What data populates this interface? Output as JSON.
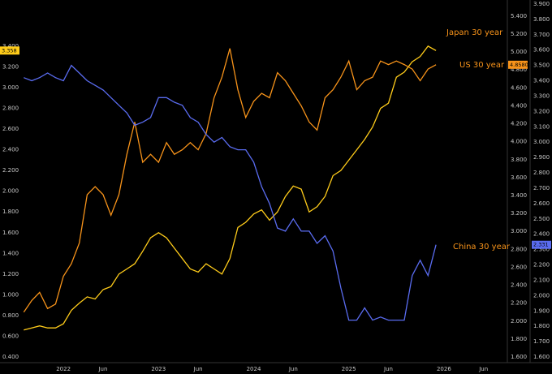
{
  "chart_data": {
    "type": "line",
    "x": [
      "2021-08",
      "2021-09",
      "2021-10",
      "2021-11",
      "2021-12",
      "2022-01",
      "2022-02",
      "2022-03",
      "2022-04",
      "2022-05",
      "2022-06",
      "2022-07",
      "2022-08",
      "2022-09",
      "2022-10",
      "2022-11",
      "2022-12",
      "2023-01",
      "2023-02",
      "2023-03",
      "2023-04",
      "2023-05",
      "2023-06",
      "2023-07",
      "2023-08",
      "2023-09",
      "2023-10",
      "2023-11",
      "2023-12",
      "2024-01",
      "2024-02",
      "2024-03",
      "2024-04",
      "2024-05",
      "2024-06",
      "2024-07",
      "2024-08",
      "2024-09",
      "2024-10",
      "2024-11",
      "2024-12",
      "2025-01",
      "2025-02",
      "2025-03",
      "2025-04",
      "2025-05",
      "2025-06",
      "2025-07",
      "2025-08",
      "2025-09",
      "2025-10",
      "2025-11",
      "2025-12"
    ],
    "xlim": [
      "2021-05",
      "2026-09"
    ],
    "xticks": [
      {
        "value": "2022-01",
        "label": "2022"
      },
      {
        "value": "2022-06",
        "label": "Jun"
      },
      {
        "value": "2023-01",
        "label": "2023"
      },
      {
        "value": "2023-06",
        "label": "Jun"
      },
      {
        "value": "2024-01",
        "label": "2024"
      },
      {
        "value": "2024-06",
        "label": "Jun"
      },
      {
        "value": "2025-01",
        "label": "2025"
      },
      {
        "value": "2025-06",
        "label": "Jun"
      },
      {
        "value": "2026-01",
        "label": "2026"
      },
      {
        "value": "2026-06",
        "label": "Jun"
      }
    ],
    "ylim": [
      0.345,
      3.846
    ],
    "yticks": [
      {
        "value": 0.4,
        "label": "0.400"
      },
      {
        "value": 0.6,
        "label": "0.600"
      },
      {
        "value": 0.8,
        "label": "0.800"
      },
      {
        "value": 1.0,
        "label": "1.000"
      },
      {
        "value": 1.2,
        "label": "1.200"
      },
      {
        "value": 1.4,
        "label": "1.400"
      },
      {
        "value": 1.6,
        "label": "1.600"
      },
      {
        "value": 1.8,
        "label": "1.800"
      },
      {
        "value": 2.0,
        "label": "2.000"
      },
      {
        "value": 2.2,
        "label": "2.200"
      },
      {
        "value": 2.4,
        "label": "2.400"
      },
      {
        "value": 2.6,
        "label": "2.600"
      },
      {
        "value": 2.8,
        "label": "2.800"
      },
      {
        "value": 3.0,
        "label": "3.000"
      },
      {
        "value": 3.2,
        "label": "3.200"
      },
      {
        "value": 3.4,
        "label": "3.400"
      }
    ],
    "y2lim": [
      1.537,
      5.58
    ],
    "y2ticks": [
      {
        "value": 1.6,
        "label": "1.600"
      },
      {
        "value": 1.8,
        "label": "1.800"
      },
      {
        "value": 2.0,
        "label": "2.000"
      },
      {
        "value": 2.2,
        "label": "2.200"
      },
      {
        "value": 2.4,
        "label": "2.400"
      },
      {
        "value": 2.6,
        "label": "2.600"
      },
      {
        "value": 2.8,
        "label": "2.800"
      },
      {
        "value": 3.0,
        "label": "3.000"
      },
      {
        "value": 3.2,
        "label": "3.200"
      },
      {
        "value": 3.4,
        "label": "3.400"
      },
      {
        "value": 3.6,
        "label": "3.600"
      },
      {
        "value": 3.8,
        "label": "3.800"
      },
      {
        "value": 4.0,
        "label": "4.000"
      },
      {
        "value": 4.2,
        "label": "4.200"
      },
      {
        "value": 4.4,
        "label": "4.400"
      },
      {
        "value": 4.6,
        "label": "4.600"
      },
      {
        "value": 4.8,
        "label": "4.800"
      },
      {
        "value": 5.0,
        "label": "5.000"
      },
      {
        "value": 5.2,
        "label": "5.200"
      },
      {
        "value": 5.4,
        "label": "5.400"
      }
    ],
    "y3lim": [
      1.563,
      3.926
    ],
    "y3ticks": [
      {
        "value": 1.6,
        "label": "1.600"
      },
      {
        "value": 1.7,
        "label": "1.700"
      },
      {
        "value": 1.8,
        "label": "1.800"
      },
      {
        "value": 1.9,
        "label": "1.900"
      },
      {
        "value": 2.0,
        "label": "2.000"
      },
      {
        "value": 2.1,
        "label": "2.100"
      },
      {
        "value": 2.2,
        "label": "2.200"
      },
      {
        "value": 2.3,
        "label": "2.300"
      },
      {
        "value": 2.4,
        "label": "2.400"
      },
      {
        "value": 2.5,
        "label": "2.500"
      },
      {
        "value": 2.6,
        "label": "2.600"
      },
      {
        "value": 2.7,
        "label": "2.700"
      },
      {
        "value": 2.8,
        "label": "2.800"
      },
      {
        "value": 2.9,
        "label": "2.900"
      },
      {
        "value": 3.0,
        "label": "3.000"
      },
      {
        "value": 3.1,
        "label": "3.100"
      },
      {
        "value": 3.2,
        "label": "3.200"
      },
      {
        "value": 3.3,
        "label": "3.300"
      },
      {
        "value": 3.4,
        "label": "3.400"
      },
      {
        "value": 3.5,
        "label": "3.500"
      },
      {
        "value": 3.6,
        "label": "3.600"
      },
      {
        "value": 3.7,
        "label": "3.700"
      },
      {
        "value": 3.8,
        "label": "3.800"
      },
      {
        "value": 3.9,
        "label": "3.900"
      }
    ],
    "grid": false,
    "series": [
      {
        "name": "Japan 30 year",
        "color": "#ffcc1a",
        "axis": "y",
        "last": {
          "value": 3.358,
          "label": "3.358"
        },
        "values": [
          0.66,
          0.68,
          0.7,
          0.68,
          0.68,
          0.72,
          0.85,
          0.92,
          0.98,
          0.96,
          1.05,
          1.08,
          1.2,
          1.25,
          1.3,
          1.42,
          1.55,
          1.6,
          1.55,
          1.45,
          1.35,
          1.25,
          1.22,
          1.3,
          1.25,
          1.2,
          1.35,
          1.65,
          1.7,
          1.78,
          1.82,
          1.72,
          1.8,
          1.95,
          2.05,
          2.02,
          1.8,
          1.85,
          1.95,
          2.15,
          2.2,
          2.3,
          2.4,
          2.5,
          2.62,
          2.8,
          2.85,
          3.1,
          3.15,
          3.25,
          3.3,
          3.4,
          3.358
        ]
      },
      {
        "name": "US 30 year",
        "color": "#f7931a",
        "axis": "y2",
        "last": {
          "value": 4.858,
          "label": "4.8580"
        },
        "values": [
          2.1,
          2.23,
          2.32,
          2.14,
          2.19,
          2.5,
          2.64,
          2.87,
          3.41,
          3.5,
          3.41,
          3.18,
          3.41,
          3.86,
          4.22,
          3.77,
          3.86,
          3.77,
          3.99,
          3.86,
          3.91,
          3.99,
          3.91,
          4.09,
          4.49,
          4.72,
          5.04,
          4.58,
          4.27,
          4.45,
          4.54,
          4.49,
          4.77,
          4.68,
          4.54,
          4.4,
          4.22,
          4.13,
          4.49,
          4.58,
          4.72,
          4.9,
          4.58,
          4.68,
          4.72,
          4.9,
          4.86,
          4.9,
          4.86,
          4.81,
          4.68,
          4.81,
          4.858
        ]
      },
      {
        "name": "China 30 year",
        "color": "#5a6cf0",
        "axis": "y3",
        "last": {
          "value": 2.331,
          "label": "2.331"
        },
        "values": [
          3.42,
          3.4,
          3.42,
          3.45,
          3.42,
          3.4,
          3.5,
          3.45,
          3.4,
          3.37,
          3.34,
          3.29,
          3.24,
          3.19,
          3.11,
          3.13,
          3.16,
          3.29,
          3.29,
          3.26,
          3.24,
          3.16,
          3.13,
          3.05,
          3.0,
          3.03,
          2.97,
          2.95,
          2.95,
          2.87,
          2.71,
          2.6,
          2.44,
          2.42,
          2.5,
          2.42,
          2.42,
          2.34,
          2.39,
          2.29,
          2.05,
          1.84,
          1.84,
          1.92,
          1.84,
          1.86,
          1.84,
          1.84,
          1.84,
          2.13,
          2.23,
          2.13,
          2.331
        ]
      }
    ]
  }
}
